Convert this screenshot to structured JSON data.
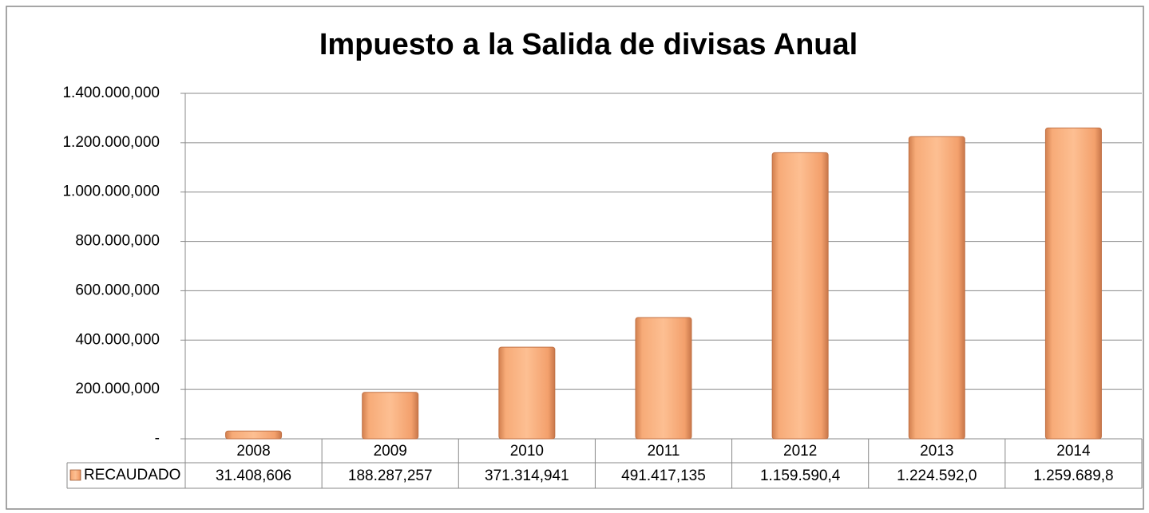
{
  "chart_data": {
    "type": "bar",
    "title": "Impuesto a la Salida de divisas Anual",
    "categories": [
      "2008",
      "2009",
      "2010",
      "2011",
      "2012",
      "2013",
      "2014"
    ],
    "series": [
      {
        "name": "RECAUDADO",
        "color": "#f4a470",
        "values": [
          31408.606,
          188287.257,
          371314.941,
          491417.135,
          1159590.4,
          1224592.0,
          1259689.8
        ],
        "value_labels": [
          "31.408,606",
          "188.287,257",
          "371.314,941",
          "491.417,135",
          "1.159.590,4",
          "1.224.592,0",
          "1.259.689,8"
        ]
      }
    ],
    "ylim": [
      0,
      1400000
    ],
    "yticks": [
      {
        "value": 0,
        "label": "-"
      },
      {
        "value": 200000,
        "label": "200.000,000"
      },
      {
        "value": 400000,
        "label": "400.000,000"
      },
      {
        "value": 600000,
        "label": "600.000,000"
      },
      {
        "value": 800000,
        "label": "800.000,000"
      },
      {
        "value": 1000000,
        "label": "1.000.000,000"
      },
      {
        "value": 1200000,
        "label": "1.200.000,000"
      },
      {
        "value": 1400000,
        "label": "1.400.000,000"
      }
    ],
    "grid": true
  }
}
